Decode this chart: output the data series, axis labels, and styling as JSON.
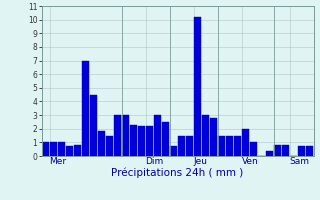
{
  "values": [
    1,
    1,
    1,
    0.7,
    0.8,
    7,
    4.5,
    1.8,
    1.5,
    3,
    3,
    2.3,
    2.2,
    2.2,
    3,
    2.5,
    0.7,
    1.5,
    1.5,
    10.2,
    3,
    2.8,
    1.5,
    1.5,
    1.5,
    2,
    1,
    0,
    0.4,
    0.8,
    0.8,
    0,
    0.7,
    0.7
  ],
  "day_labels": [
    "Mer",
    "Dim",
    "Jeu",
    "Ven",
    "Sam"
  ],
  "day_positions": [
    0.5,
    12.5,
    18.5,
    24.5,
    30.5
  ],
  "day_line_positions": [
    0,
    10,
    16,
    22,
    29,
    34
  ],
  "bar_color": "#0000dd",
  "bar_edge_color": "#000099",
  "bg_color": "#e0f4f4",
  "grid_color": "#b0c8c8",
  "axis_label_color": "#0000aa",
  "tick_label_color": "#333333",
  "xlabel": "Précipitations 24h ( mm )",
  "ylim": [
    0,
    11
  ],
  "yticks": [
    0,
    1,
    2,
    3,
    4,
    5,
    6,
    7,
    8,
    9,
    10,
    11
  ],
  "label_fontsize": 7.5
}
